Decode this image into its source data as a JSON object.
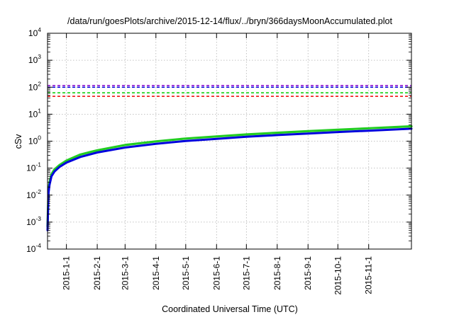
{
  "chart_data": {
    "type": "line",
    "title": "/data/run/goesPlots/archive/2015-12-14/flux/../bryn/366daysMoonAccumulated.plot",
    "xlabel": "Coordinated Universal Time (UTC)",
    "ylabel": "cSv",
    "yscale": "log",
    "ylim": [
      0.0001,
      10000
    ],
    "xlim": [
      "2014-12-13",
      "2015-12-14"
    ],
    "grid": true,
    "legend": "none",
    "y_ticks": [
      {
        "base": "10",
        "exp": "-4"
      },
      {
        "base": "10",
        "exp": "-3"
      },
      {
        "base": "10",
        "exp": "-2"
      },
      {
        "base": "10",
        "exp": "-1"
      },
      {
        "base": "10",
        "exp": "0"
      },
      {
        "base": "10",
        "exp": "1"
      },
      {
        "base": "10",
        "exp": "2"
      },
      {
        "base": "10",
        "exp": "3"
      },
      {
        "base": "10",
        "exp": "4"
      }
    ],
    "x_ticks": [
      {
        "date": "2015-01-01",
        "label": "2015-1-1"
      },
      {
        "date": "2015-02-01",
        "label": "2015-2-1"
      },
      {
        "date": "2015-03-01",
        "label": "2015-3-1"
      },
      {
        "date": "2015-04-01",
        "label": "2015-4-1"
      },
      {
        "date": "2015-05-01",
        "label": "2015-5-1"
      },
      {
        "date": "2015-06-01",
        "label": "2015-6-1"
      },
      {
        "date": "2015-07-01",
        "label": "2015-7-1"
      },
      {
        "date": "2015-08-01",
        "label": "2015-8-1"
      },
      {
        "date": "2015-09-01",
        "label": "2015-9-1"
      },
      {
        "date": "2015-10-01",
        "label": "2015-10-1"
      },
      {
        "date": "2015-11-01",
        "label": "2015-11-1"
      }
    ],
    "limit_lines": [
      {
        "y": 115,
        "color": "#8800cc"
      },
      {
        "y": 100,
        "color": "#0000dd"
      },
      {
        "y": 62,
        "color": "#00cc00"
      },
      {
        "y": 46,
        "color": "#ee0000"
      }
    ],
    "series": [
      {
        "color": "#22cc22",
        "x": [
          "2014-12-13",
          "2014-12-14",
          "2014-12-15",
          "2014-12-17",
          "2014-12-20",
          "2014-12-25",
          "2015-01-01",
          "2015-01-15",
          "2015-02-01",
          "2015-03-01",
          "2015-04-01",
          "2015-05-01",
          "2015-06-01",
          "2015-07-01",
          "2015-08-01",
          "2015-09-01",
          "2015-10-01",
          "2015-11-01",
          "2015-12-14"
        ],
        "y": [
          0.0007,
          0.015,
          0.03,
          0.06,
          0.09,
          0.13,
          0.19,
          0.32,
          0.46,
          0.72,
          0.98,
          1.25,
          1.5,
          1.78,
          2.05,
          2.35,
          2.65,
          3.0,
          3.55
        ]
      },
      {
        "color": "#0000dd",
        "x": [
          "2014-12-13",
          "2014-12-14",
          "2014-12-15",
          "2014-12-17",
          "2014-12-20",
          "2014-12-25",
          "2015-01-01",
          "2015-01-15",
          "2015-02-01",
          "2015-03-01",
          "2015-04-01",
          "2015-05-01",
          "2015-06-01",
          "2015-07-01",
          "2015-08-01",
          "2015-09-01",
          "2015-10-01",
          "2015-11-01",
          "2015-12-14"
        ],
        "y": [
          0.0005,
          0.012,
          0.024,
          0.05,
          0.075,
          0.11,
          0.16,
          0.26,
          0.38,
          0.58,
          0.8,
          1.02,
          1.22,
          1.45,
          1.68,
          1.92,
          2.18,
          2.45,
          2.9
        ]
      }
    ]
  }
}
